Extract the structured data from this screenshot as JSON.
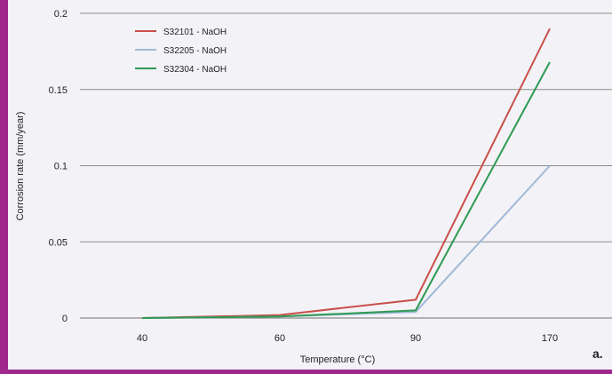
{
  "chart_data": {
    "type": "line",
    "categories": [
      "40",
      "60",
      "90",
      "170"
    ],
    "series": [
      {
        "name": "S32101 - NaOH",
        "values": [
          0,
          0.002,
          0.012,
          0.19
        ],
        "color": "#c8504a"
      },
      {
        "name": "S32205 - NaOH",
        "values": [
          0,
          0.001,
          0.004,
          0.1
        ],
        "color": "#9fb8d8"
      },
      {
        "name": "S32304 - NaOH",
        "values": [
          0,
          0.001,
          0.005,
          0.168
        ],
        "color": "#2e9a52"
      }
    ],
    "title": "",
    "xlabel": "Temperature (°C)",
    "ylabel": "Corrosion rate (mm/year)",
    "ylim": [
      0,
      0.2
    ],
    "yticks": [
      "0",
      "0.05",
      "0.1",
      "0.15",
      "0.2"
    ],
    "grid": true,
    "legend": "top-left",
    "annotation": "a.",
    "colors": {
      "border": "#a0288c",
      "background": "#f3f2f6",
      "grid": "#8c8c8c"
    }
  }
}
